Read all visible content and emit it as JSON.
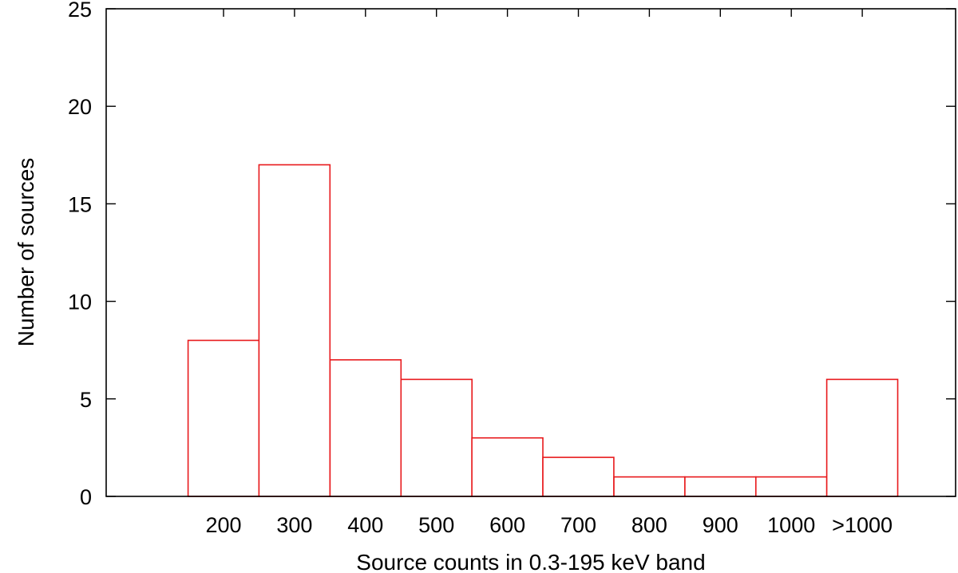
{
  "chart_data": {
    "type": "bar",
    "title": "",
    "xlabel": "Source counts in 0.3-195 keV band",
    "ylabel": "Number of sources",
    "categories": [
      "200",
      "300",
      "400",
      "500",
      "600",
      "700",
      "800",
      "900",
      "1000",
      ">1000"
    ],
    "values": [
      8,
      17,
      7,
      6,
      3,
      2,
      1,
      1,
      1,
      6
    ],
    "ylim": [
      0,
      25
    ],
    "yticks": [
      0,
      5,
      10,
      15,
      20,
      25
    ],
    "grid": false,
    "bar_color": "#e8191c"
  }
}
